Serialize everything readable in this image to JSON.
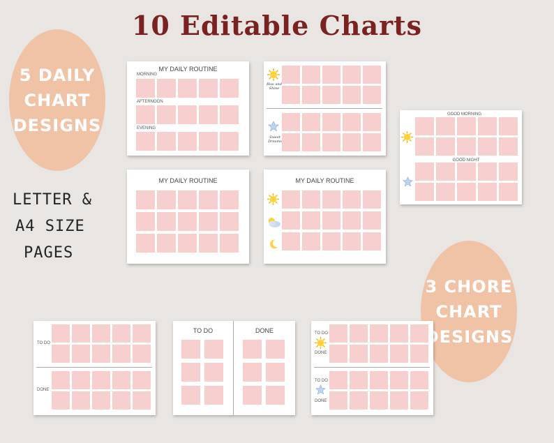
{
  "header": {
    "title": "10 Editable Charts"
  },
  "left_badge": {
    "line1": "5 DAILY",
    "line2": "CHART",
    "line3": "DESIGNS"
  },
  "right_badge": {
    "line1": "3 CHORE",
    "line2": "CHART",
    "line3": "DESIGNS"
  },
  "page_size_text": {
    "line1": "LETTER &",
    "line2": "A4 SIZE",
    "line3": "PAGES"
  },
  "chart1": {
    "title": "MY DAILY ROUTINE",
    "rows": [
      "MORNING",
      "AFTERNOON",
      "EVENING"
    ]
  },
  "chart2": {
    "label1": "Rise and Shine",
    "label2": "Sweet Dreams"
  },
  "chart3": {
    "title": "MY DAILY ROUTINE"
  },
  "chart4": {
    "title": "MY DAILY ROUTINE"
  },
  "chart5": {
    "label1": "GOOD MORNING",
    "label2": "GOOD NIGHT"
  },
  "chore1": {
    "todo": "TO DO",
    "done": "DONE"
  },
  "chore2": {
    "todo": "TO DO",
    "done": "DONE"
  },
  "chore3": {
    "todo1": "TO DO",
    "done1": "DONE",
    "todo2": "TO DO",
    "done2": "DONE"
  },
  "colors": {
    "cell": "#f8cfcf",
    "badge": "#f0c3a6",
    "title": "#7a2222",
    "background": "#e8e5e2"
  },
  "icons": [
    "sun-icon",
    "star-icon",
    "cloud-sun-icon",
    "moon-icon"
  ]
}
